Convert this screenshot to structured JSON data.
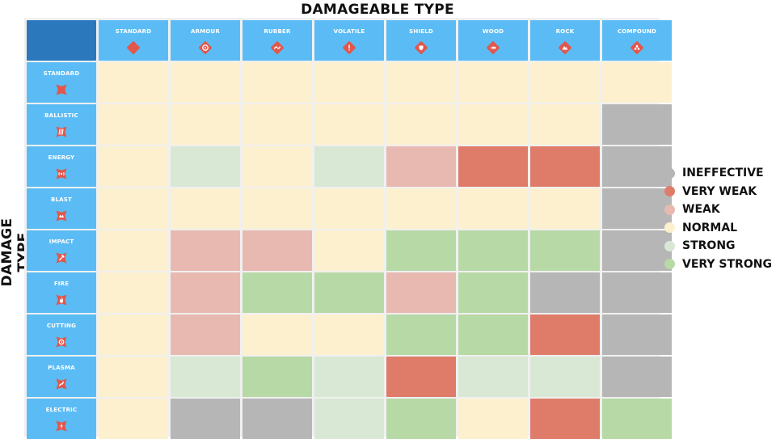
{
  "chart_data": {
    "type": "heatmap",
    "title": "DAMAGEABLE TYPE",
    "ylabel": "DAMAGE TYPE",
    "columns": [
      {
        "label": "STANDARD",
        "icon": "diamond-icon"
      },
      {
        "label": "ARMOUR",
        "icon": "shield-ring-icon"
      },
      {
        "label": "RUBBER",
        "icon": "wave-icon"
      },
      {
        "label": "VOLATILE",
        "icon": "exclamation-icon"
      },
      {
        "label": "SHIELD",
        "icon": "shield-icon"
      },
      {
        "label": "WOOD",
        "icon": "log-icon"
      },
      {
        "label": "ROCK",
        "icon": "mountain-icon"
      },
      {
        "label": "COMPOUND",
        "icon": "molecule-icon"
      }
    ],
    "rows": [
      {
        "label": "STANDARD",
        "icon": "cross-icon"
      },
      {
        "label": "BALLISTIC",
        "icon": "bullets-icon"
      },
      {
        "label": "ENERGY",
        "icon": "energy-icon"
      },
      {
        "label": "BLAST",
        "icon": "blast-icon"
      },
      {
        "label": "IMPACT",
        "icon": "hammer-icon"
      },
      {
        "label": "FIRE",
        "icon": "flame-icon"
      },
      {
        "label": "CUTTING",
        "icon": "saw-icon"
      },
      {
        "label": "PLASMA",
        "icon": "plasma-icon"
      },
      {
        "label": "ELECTRIC",
        "icon": "lightning-icon"
      }
    ],
    "legend": [
      {
        "key": "ineffective",
        "label": "INEFFECTIVE",
        "color": "#b6b6b6"
      },
      {
        "key": "veryweak",
        "label": "VERY WEAK",
        "color": "#df7c69"
      },
      {
        "key": "weak",
        "label": "WEAK",
        "color": "#e8b9b0"
      },
      {
        "key": "normal",
        "label": "NORMAL",
        "color": "#fdf0cf"
      },
      {
        "key": "strong",
        "label": "STRONG",
        "color": "#d9e8d4"
      },
      {
        "key": "verystrong",
        "label": "VERY STRONG",
        "color": "#b7d9a6"
      }
    ],
    "legend_position": "right",
    "values": [
      [
        "normal",
        "normal",
        "normal",
        "normal",
        "normal",
        "normal",
        "normal",
        "normal"
      ],
      [
        "normal",
        "normal",
        "normal",
        "normal",
        "normal",
        "normal",
        "normal",
        "ineffective"
      ],
      [
        "normal",
        "strong",
        "normal",
        "strong",
        "weak",
        "veryweak",
        "veryweak",
        "ineffective"
      ],
      [
        "normal",
        "normal",
        "normal",
        "normal",
        "normal",
        "normal",
        "normal",
        "ineffective"
      ],
      [
        "normal",
        "weak",
        "weak",
        "normal",
        "verystrong",
        "verystrong",
        "verystrong",
        "ineffective"
      ],
      [
        "normal",
        "weak",
        "verystrong",
        "verystrong",
        "weak",
        "verystrong",
        "ineffective",
        "ineffective"
      ],
      [
        "normal",
        "weak",
        "normal",
        "normal",
        "verystrong",
        "verystrong",
        "veryweak",
        "ineffective"
      ],
      [
        "normal",
        "strong",
        "verystrong",
        "strong",
        "veryweak",
        "strong",
        "strong",
        "ineffective"
      ],
      [
        "normal",
        "ineffective",
        "ineffective",
        "strong",
        "verystrong",
        "normal",
        "veryweak",
        "verystrong"
      ]
    ]
  }
}
